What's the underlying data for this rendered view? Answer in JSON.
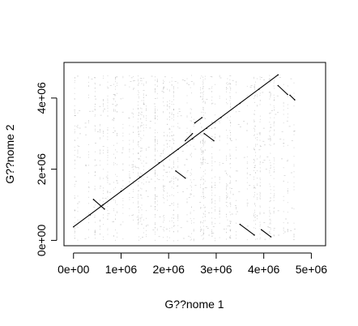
{
  "chart_data": {
    "type": "scatter",
    "title": "",
    "xlabel": "G??nome 1",
    "ylabel": "G??nome 2",
    "xlim": [
      -200000,
      5300000
    ],
    "ylim": [
      -150000,
      5000000
    ],
    "x_ticks": [
      {
        "value": 0,
        "label": "0e+00"
      },
      {
        "value": 1000000,
        "label": "1e+06"
      },
      {
        "value": 2000000,
        "label": "2e+06"
      },
      {
        "value": 3000000,
        "label": "3e+06"
      },
      {
        "value": 4000000,
        "label": "4e+06"
      },
      {
        "value": 5000000,
        "label": "5e+06"
      }
    ],
    "y_ticks": [
      {
        "value": 0,
        "label": "0e+00"
      },
      {
        "value": 2000000,
        "label": "2e+06"
      },
      {
        "value": 4000000,
        "label": "4e+06"
      }
    ],
    "grid": false,
    "legend": "none",
    "point_color": "#000000",
    "series": [
      {
        "values": [
          {
            "x": 0,
            "y": 380000
          },
          {
            "x": 350000,
            "y": 720000
          },
          {
            "x": 620000,
            "y": 1000000
          },
          {
            "x": 1000000,
            "y": 1380000
          },
          {
            "x": 1400000,
            "y": 1780000
          },
          {
            "x": 1800000,
            "y": 2180000
          },
          {
            "x": 2200000,
            "y": 2560000
          },
          {
            "x": 2500000,
            "y": 2850000
          },
          {
            "x": 2800000,
            "y": 3150000
          },
          {
            "x": 3100000,
            "y": 3450000
          },
          {
            "x": 3500000,
            "y": 3850000
          },
          {
            "x": 3900000,
            "y": 4250000
          },
          {
            "x": 4300000,
            "y": 4650000
          },
          {
            "x": 420000,
            "y": 1150000
          },
          {
            "x": 650000,
            "y": 880000
          },
          {
            "x": 2150000,
            "y": 1950000
          },
          {
            "x": 2350000,
            "y": 1750000
          },
          {
            "x": 2350000,
            "y": 2800000
          },
          {
            "x": 2500000,
            "y": 3000000
          },
          {
            "x": 2550000,
            "y": 3300000
          },
          {
            "x": 2700000,
            "y": 3450000
          },
          {
            "x": 2750000,
            "y": 3000000
          },
          {
            "x": 2950000,
            "y": 2800000
          },
          {
            "x": 3500000,
            "y": 450000
          },
          {
            "x": 3800000,
            "y": 150000
          },
          {
            "x": 3950000,
            "y": 300000
          },
          {
            "x": 4150000,
            "y": 100000
          },
          {
            "x": 4300000,
            "y": 4350000
          },
          {
            "x": 4500000,
            "y": 4100000
          },
          {
            "x": 4550000,
            "y": 4080000
          },
          {
            "x": 4650000,
            "y": 3950000
          }
        ]
      }
    ]
  }
}
